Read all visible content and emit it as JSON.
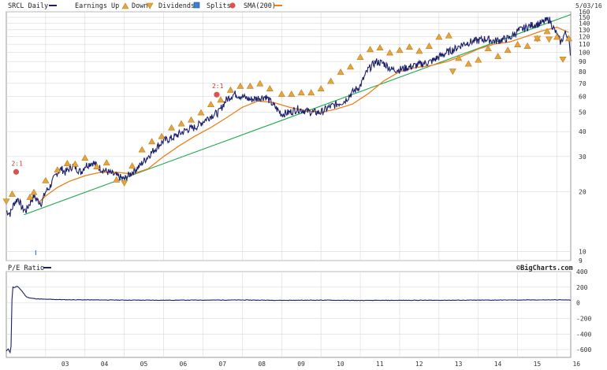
{
  "header": {
    "symbol_label": "SRCL Daily",
    "date": "5/03/16",
    "legend": [
      {
        "key": "earnings_up",
        "label": "Earnings Up",
        "icon": "triangle-up-icon",
        "color": "#e8a33c"
      },
      {
        "key": "earnings_down",
        "label": "Down",
        "icon": "triangle-down-icon",
        "color": "#e8a33c"
      },
      {
        "key": "dividends",
        "label": "Dividends",
        "icon": "dividend-square-icon",
        "color": "#3a7fd5"
      },
      {
        "key": "splits",
        "label": "Splits",
        "icon": "split-circle-icon",
        "color": "#d9534f"
      },
      {
        "key": "sma",
        "label": "SMA(200)",
        "icon": "sma-line-icon",
        "color": "#f07f1a"
      }
    ]
  },
  "lower_panel": {
    "title": "P/E Ratio",
    "credit": "©BigCharts.com"
  },
  "colors": {
    "price": "#1c1f6b",
    "sma": "#f07f1a",
    "trend": "#1aa84a",
    "grid": "#d8d8d8",
    "marker": "#e8a33c",
    "split": "#d9534f"
  },
  "chart_data": [
    {
      "type": "line",
      "name": "price",
      "scale": "log",
      "ylim": [
        9,
        160
      ],
      "y_ticks": [
        9,
        10,
        20,
        30,
        40,
        50,
        60,
        70,
        80,
        90,
        100,
        110,
        120,
        130,
        140,
        150,
        160
      ],
      "x_ticks": [
        "03",
        "04",
        "05",
        "06",
        "07",
        "08",
        "09",
        "10",
        "11",
        "12",
        "13",
        "14",
        "15",
        "16"
      ],
      "xlim": [
        2002.0,
        2016.35
      ],
      "series": [
        {
          "key": "price",
          "x": [
            2002.0,
            2002.1,
            2002.2,
            2002.3,
            2002.4,
            2002.5,
            2002.6,
            2002.7,
            2002.8,
            2002.9,
            2003.0,
            2003.1,
            2003.2,
            2003.3,
            2003.4,
            2003.5,
            2003.6,
            2003.7,
            2003.8,
            2003.9,
            2004.0,
            2004.2,
            2004.4,
            2004.6,
            2004.8,
            2005.0,
            2005.2,
            2005.4,
            2005.6,
            2005.8,
            2006.0,
            2006.2,
            2006.4,
            2006.6,
            2006.8,
            2007.0,
            2007.2,
            2007.4,
            2007.6,
            2007.8,
            2008.0,
            2008.2,
            2008.4,
            2008.6,
            2008.8,
            2009.0,
            2009.2,
            2009.4,
            2009.6,
            2009.8,
            2010.0,
            2010.2,
            2010.4,
            2010.6,
            2010.8,
            2011.0,
            2011.2,
            2011.4,
            2011.6,
            2011.8,
            2012.0,
            2012.2,
            2012.4,
            2012.6,
            2012.8,
            2013.0,
            2013.2,
            2013.4,
            2013.6,
            2013.8,
            2014.0,
            2014.2,
            2014.4,
            2014.6,
            2014.8,
            2015.0,
            2015.2,
            2015.4,
            2015.6,
            2015.8,
            2015.9,
            2016.0,
            2016.1,
            2016.2,
            2016.3,
            2016.34
          ],
          "values": [
            16,
            15.5,
            17.5,
            18.5,
            16.5,
            16,
            17.5,
            19,
            18,
            17.5,
            20,
            21,
            23,
            25,
            26,
            25,
            26,
            27,
            26,
            25,
            27,
            28,
            26,
            25,
            24,
            23,
            25,
            27,
            30,
            33,
            36,
            37,
            39,
            41,
            42,
            45,
            48,
            50,
            58,
            62,
            60,
            58,
            59,
            60,
            54,
            49,
            50,
            52,
            51,
            50,
            50,
            53,
            55,
            57,
            63,
            68,
            82,
            90,
            88,
            82,
            82,
            84,
            86,
            88,
            90,
            95,
            100,
            104,
            110,
            113,
            115,
            117,
            114,
            116,
            118,
            128,
            133,
            138,
            140,
            147,
            134,
            122,
            112,
            125,
            120,
            93
          ]
        },
        {
          "key": "sma",
          "x": [
            2002.8,
            2003.0,
            2003.3,
            2003.6,
            2004.0,
            2004.4,
            2004.8,
            2005.2,
            2005.6,
            2006.0,
            2006.4,
            2006.8,
            2007.2,
            2007.6,
            2008.0,
            2008.4,
            2008.8,
            2009.2,
            2009.6,
            2010.0,
            2010.4,
            2010.8,
            2011.2,
            2011.6,
            2012.0,
            2012.4,
            2012.8,
            2013.2,
            2013.6,
            2014.0,
            2014.4,
            2014.8,
            2015.2,
            2015.6,
            2016.0,
            2016.3
          ],
          "values": [
            17.5,
            19,
            21,
            22.5,
            24,
            25,
            25,
            24.5,
            26,
            30,
            34,
            38,
            42,
            47,
            53,
            57,
            56,
            53,
            51,
            50,
            52,
            55,
            62,
            72,
            80,
            84,
            86,
            90,
            96,
            104,
            110,
            113,
            120,
            128,
            134,
            126
          ]
        },
        {
          "key": "trend",
          "x": [
            2002.45,
            2016.35
          ],
          "values": [
            15.3,
            155
          ]
        }
      ],
      "earnings_up": [
        [
          2002.15,
          19.5
        ],
        [
          2002.6,
          18.8
        ],
        [
          2002.7,
          19.9
        ],
        [
          2003.0,
          22.8
        ],
        [
          2003.3,
          25.8
        ],
        [
          2003.55,
          27.8
        ],
        [
          2003.75,
          27.6
        ],
        [
          2004.0,
          29.6
        ],
        [
          2004.3,
          26.8
        ],
        [
          2004.55,
          28.0
        ],
        [
          2004.8,
          23.0
        ],
        [
          2005.2,
          27.0
        ],
        [
          2005.45,
          32.6
        ],
        [
          2005.7,
          35.8
        ],
        [
          2005.95,
          38.0
        ],
        [
          2006.2,
          42.0
        ],
        [
          2006.45,
          44.0
        ],
        [
          2006.7,
          46.0
        ],
        [
          2006.95,
          50.0
        ],
        [
          2007.2,
          55.0
        ],
        [
          2007.45,
          58.0
        ],
        [
          2007.7,
          65.0
        ],
        [
          2007.95,
          68.0
        ],
        [
          2008.2,
          68.0
        ],
        [
          2008.45,
          70.0
        ],
        [
          2008.7,
          66.0
        ],
        [
          2009.0,
          62.0
        ],
        [
          2009.25,
          62.0
        ],
        [
          2009.5,
          63.0
        ],
        [
          2009.75,
          63.0
        ],
        [
          2010.0,
          66.0
        ],
        [
          2010.25,
          72.0
        ],
        [
          2010.5,
          80.0
        ],
        [
          2010.75,
          85.0
        ],
        [
          2011.0,
          95.0
        ],
        [
          2011.25,
          104.0
        ],
        [
          2011.5,
          106.0
        ],
        [
          2011.75,
          100.0
        ],
        [
          2012.0,
          103.0
        ],
        [
          2012.25,
          107.0
        ],
        [
          2012.5,
          102.0
        ],
        [
          2012.75,
          108.0
        ],
        [
          2013.0,
          120.0
        ],
        [
          2013.25,
          122.0
        ],
        [
          2013.5,
          94.0
        ],
        [
          2013.75,
          88.0
        ],
        [
          2014.0,
          92.0
        ],
        [
          2014.25,
          105.0
        ],
        [
          2014.5,
          96.0
        ],
        [
          2014.75,
          103.0
        ],
        [
          2015.0,
          110.0
        ],
        [
          2015.25,
          108.0
        ],
        [
          2015.5,
          118.0
        ],
        [
          2015.75,
          128.0
        ],
        [
          2016.0,
          120.0
        ],
        [
          2016.3,
          118.0
        ]
      ],
      "earnings_down": [
        [
          2002.0,
          17.8
        ],
        [
          2005.0,
          22.0
        ],
        [
          2013.35,
          80.0
        ],
        [
          2015.5,
          117.0
        ],
        [
          2015.8,
          116.0
        ],
        [
          2016.15,
          92.0
        ]
      ],
      "splits": [
        {
          "x": 2002.25,
          "y": 27,
          "label": "2:1"
        },
        {
          "x": 2007.35,
          "y": 66,
          "label": "2:1"
        }
      ],
      "dividends": [
        2002.75
      ]
    },
    {
      "type": "line",
      "name": "pe_ratio",
      "ylim": [
        -700,
        400
      ],
      "y_ticks": [
        -600,
        -400,
        -200,
        0,
        200,
        400
      ],
      "series": [
        {
          "key": "pe",
          "x": [
            2002.0,
            2002.05,
            2002.1,
            2002.12,
            2002.15,
            2002.18,
            2002.2,
            2002.25,
            2002.3,
            2002.4,
            2002.5,
            2002.6,
            2002.8,
            2003.0,
            2003.5,
            2004.0,
            2005.0,
            2006.0,
            2007.0,
            2008.0,
            2009.0,
            2010.0,
            2011.0,
            2012.0,
            2013.0,
            2014.0,
            2015.0,
            2016.0,
            2016.35
          ],
          "values": [
            -620,
            -590,
            -640,
            -560,
            210,
            200,
            190,
            210,
            205,
            150,
            80,
            60,
            50,
            45,
            40,
            38,
            35,
            33,
            35,
            36,
            32,
            34,
            30,
            32,
            33,
            34,
            36,
            38,
            36
          ]
        }
      ]
    }
  ]
}
